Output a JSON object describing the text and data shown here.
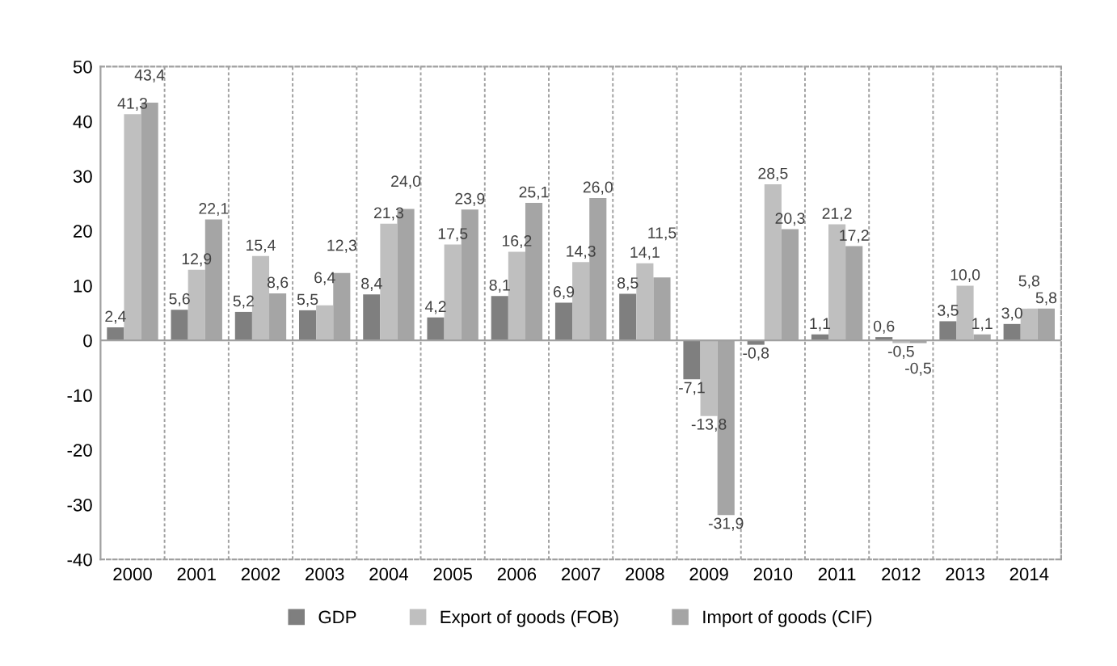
{
  "chart_data": {
    "type": "bar",
    "categories": [
      "2000",
      "2001",
      "2002",
      "2003",
      "2004",
      "2005",
      "2006",
      "2007",
      "2008",
      "2009",
      "2010",
      "2011",
      "2012",
      "2013",
      "2014"
    ],
    "series": [
      {
        "name": "GDP",
        "color": "#7f7f7f",
        "values": [
          2.4,
          5.6,
          5.2,
          5.5,
          8.4,
          4.2,
          8.1,
          6.9,
          8.5,
          -7.1,
          -0.8,
          1.1,
          0.6,
          3.5,
          3.0
        ],
        "value_labels": [
          "2,4",
          "5,6",
          "5,2",
          "5,5",
          "8,4",
          "4,2",
          "8,1",
          "6,9",
          "8,5",
          "-7,1",
          "-0,8",
          "1,1",
          "0,6",
          "3,5",
          "3,0"
        ]
      },
      {
        "name": "Export of goods (FOB)",
        "color": "#bfbfbf",
        "values": [
          41.3,
          12.9,
          15.4,
          6.4,
          21.3,
          17.5,
          16.2,
          14.3,
          14.1,
          -13.8,
          28.5,
          21.2,
          -0.5,
          10.0,
          5.8
        ],
        "value_labels": [
          "41,3",
          "12,9",
          "15,4",
          "6,4",
          "21,3",
          "17,5",
          "16,2",
          "14,3",
          "14,1",
          "-13,8",
          "28,5",
          "21,2",
          "-0,5",
          "10,0",
          "5,8"
        ]
      },
      {
        "name": "Import of goods (CIF)",
        "color": "#a5a5a5",
        "values": [
          43.4,
          22.1,
          8.6,
          12.3,
          24.0,
          23.9,
          25.1,
          26.0,
          11.5,
          -31.9,
          20.3,
          17.2,
          -0.5,
          1.1,
          5.8
        ],
        "value_labels": [
          "43,4",
          "22,1",
          "8,6",
          "12,3",
          "24,0",
          "23,9",
          "25,1",
          "26,0",
          "11,5",
          "-31,9",
          "20,3",
          "17,2",
          "-0,5",
          "1,1",
          "5,8"
        ]
      }
    ],
    "ylim": [
      -40,
      50
    ],
    "yticks": [
      -40,
      -30,
      -20,
      -10,
      0,
      10,
      20,
      30,
      40,
      50
    ],
    "grid": "x",
    "legend": "bottom"
  }
}
